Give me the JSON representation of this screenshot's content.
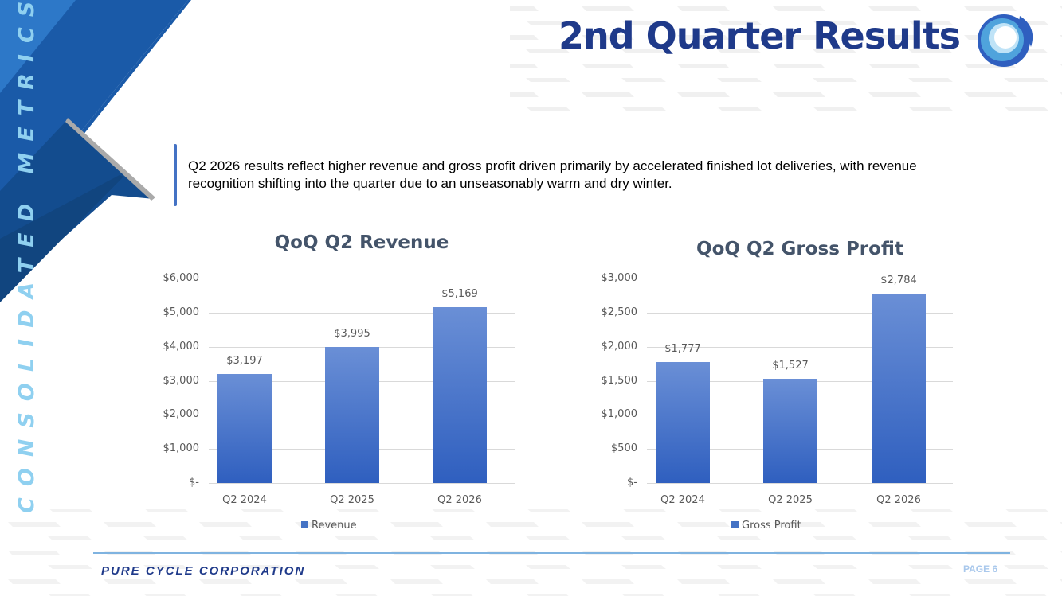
{
  "header": {
    "title": "2nd Quarter Results",
    "logo": "wave-logo-icon"
  },
  "side_label": "CONSOLIDATED METRICS",
  "intro": "Q2 2026 results reflect higher revenue and gross profit driven primarily by accelerated finished lot deliveries, with revenue recognition shifting into the quarter due to an unseasonably warm and dry winter.",
  "footer": {
    "company": "PURE CYCLE CORPORATION",
    "page": "PAGE 6"
  },
  "colors": {
    "bar": "#4472c4",
    "title": "#1f3a8a",
    "accent": "#1a5aa8"
  },
  "chart_data": [
    {
      "type": "bar",
      "title": "QoQ Q2 Revenue",
      "categories": [
        "Q2 2024",
        "Q2 2025",
        "Q2 2026"
      ],
      "series": [
        {
          "name": "Revenue",
          "values": [
            3197,
            3995,
            5169
          ]
        }
      ],
      "data_labels": [
        "$3,197",
        "$3,995",
        "$5,169"
      ],
      "yticks": [
        "$-",
        "$1,000",
        "$2,000",
        "$3,000",
        "$4,000",
        "$5,000",
        "$6,000"
      ],
      "ylim": [
        0,
        6000
      ],
      "grid": true,
      "legend": "bottom"
    },
    {
      "type": "bar",
      "title": "QoQ Q2 Gross Profit",
      "categories": [
        "Q2 2024",
        "Q2 2025",
        "Q2 2026"
      ],
      "series": [
        {
          "name": "Gross Profit",
          "values": [
            1777,
            1527,
            2784
          ]
        }
      ],
      "data_labels": [
        "$1,777",
        "$1,527",
        "$2,784"
      ],
      "yticks": [
        "$-",
        "$500",
        "$1,000",
        "$1,500",
        "$2,000",
        "$2,500",
        "$3,000"
      ],
      "ylim": [
        0,
        3000
      ],
      "grid": true,
      "legend": "bottom"
    }
  ]
}
